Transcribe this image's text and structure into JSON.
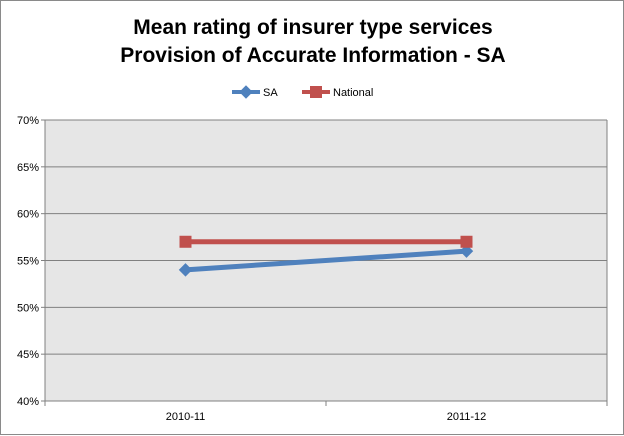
{
  "chart_data": {
    "type": "line",
    "title": [
      "Mean rating of insurer type services",
      "Provision of Accurate Information - SA"
    ],
    "categories": [
      "2010-11",
      "2011-12"
    ],
    "series": [
      {
        "name": "SA",
        "values": [
          54,
          56
        ],
        "color": "#4f81bd",
        "marker": "diamond"
      },
      {
        "name": "National",
        "values": [
          57,
          57
        ],
        "color": "#c0504d",
        "marker": "square"
      }
    ],
    "ylim": [
      40,
      70
    ],
    "yticks": [
      40,
      45,
      50,
      55,
      60,
      65,
      70
    ],
    "ytick_suffix": "%",
    "grid": true,
    "legend": "top-center"
  }
}
